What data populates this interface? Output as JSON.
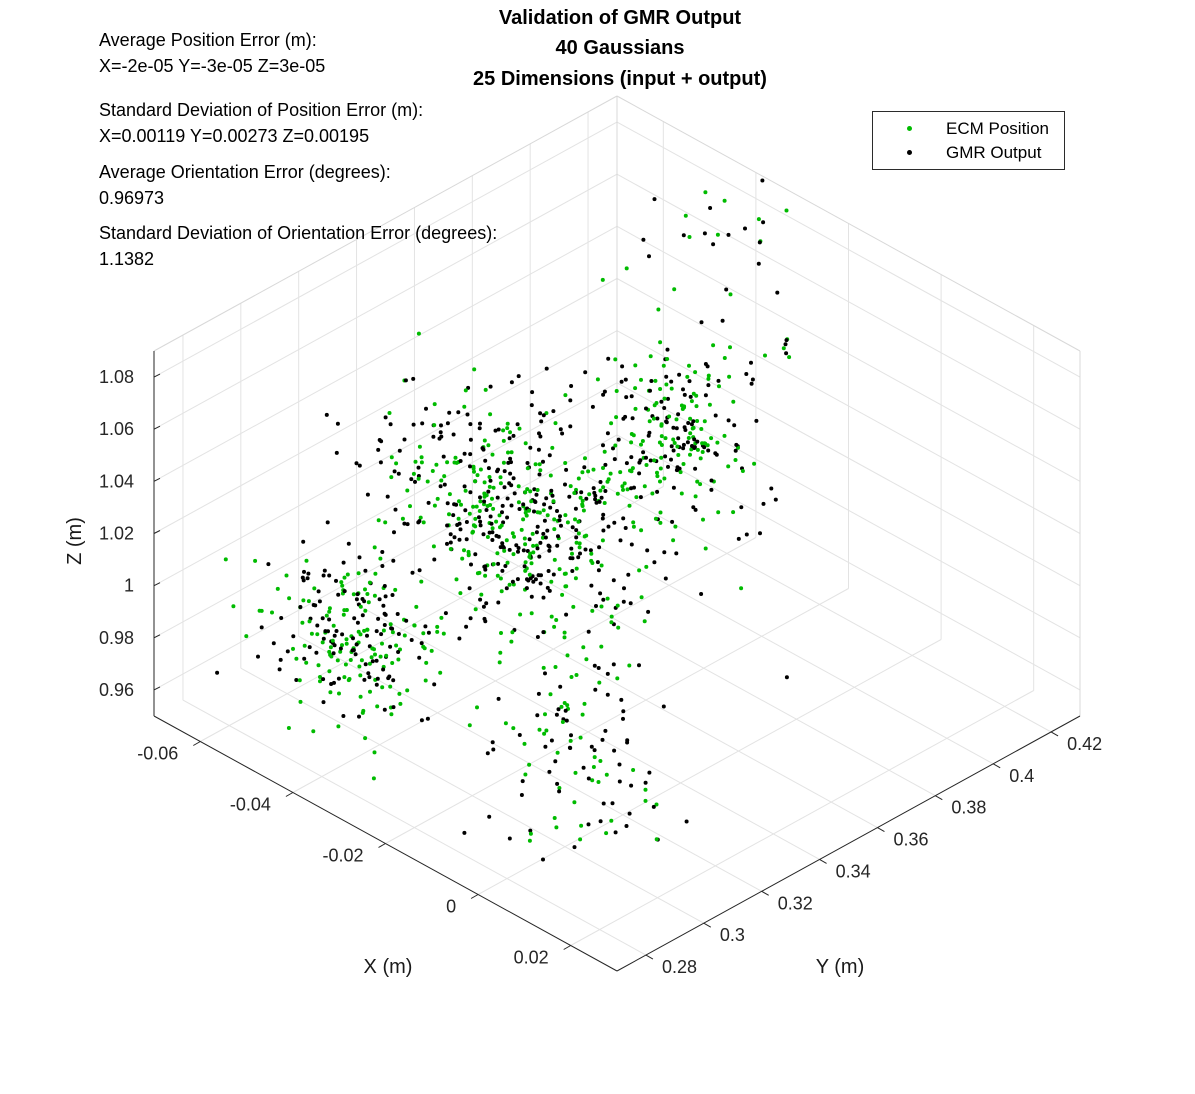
{
  "chart_data": {
    "type": "scatter",
    "title": [
      "Validation of GMR Output",
      "40 Gaussians",
      "25 Dimensions (input + output)"
    ],
    "xlabel": "X (m)",
    "ylabel": "Y (m)",
    "zlabel": "Z (m)",
    "xlim": [
      -0.07,
      0.03
    ],
    "ylim": [
      0.27,
      0.43
    ],
    "zlim": [
      0.95,
      1.09
    ],
    "x_ticks": [
      "-0.06",
      "-0.04",
      "-0.02",
      "0",
      "0.02"
    ],
    "y_ticks": [
      "0.28",
      "0.3",
      "0.32",
      "0.34",
      "0.36",
      "0.38",
      "0.4",
      "0.42"
    ],
    "z_ticks": [
      "0.96",
      "0.98",
      "1",
      "1.02",
      "1.04",
      "1.06",
      "1.08"
    ],
    "grid": true,
    "legend_position": "top-right",
    "series": [
      {
        "name": "ECM Position",
        "color": "#00bb00",
        "marker": "point"
      },
      {
        "name": "GMR Output",
        "color": "#000000",
        "marker": "point"
      }
    ],
    "annotations": [
      "Average Position Error (m):",
      "X=-2e-05 Y=-3e-05 Z=3e-05",
      "Standard Deviation of Position Error (m):",
      "X=0.00119 Y=0.00273 Z=0.00195",
      "Average Orientation Error (degrees):",
      "0.96973",
      "Standard Deviation of Orientation Error (degrees):",
      "1.1382"
    ]
  }
}
